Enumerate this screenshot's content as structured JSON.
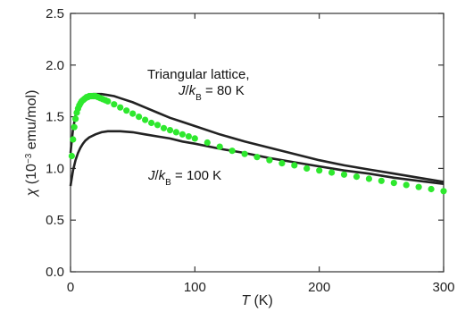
{
  "chart_data": {
    "type": "scatter",
    "title": "",
    "xlabel_symbol": "T",
    "xlabel_unit": " (K)",
    "ylabel_symbol": "χ",
    "ylabel_unit_pre": " (10",
    "ylabel_exponent": "−3",
    "ylabel_unit_post": " emu/mol)",
    "xlim": [
      0,
      300
    ],
    "ylim": [
      0,
      2.5
    ],
    "x_ticks": [
      0,
      100,
      200,
      300
    ],
    "x_tick_labels": [
      "0",
      "100",
      "200",
      "300"
    ],
    "y_ticks": [
      0,
      0.5,
      1.0,
      1.5,
      2.0,
      2.5
    ],
    "y_tick_labels": [
      "0.0",
      "0.5",
      "1.0",
      "1.5",
      "2.0",
      "2.5"
    ],
    "grid": false,
    "annotations": [
      {
        "line1": "Triangular lattice,",
        "symbol": "J",
        "slash": "/",
        "k": "k",
        "sub": "B",
        "rest": " = 80 K",
        "anchor_x": 123,
        "anchor_y": 1.93
      },
      {
        "symbol": "J",
        "slash": "/",
        "k": "k",
        "sub": "B",
        "rest": " = 100 K",
        "anchor_x": 63,
        "anchor_y": 0.97
      }
    ],
    "series": [
      {
        "kind": "markers",
        "color": "#2ee82e",
        "x": [
          1,
          2,
          3,
          4,
          5,
          6,
          7,
          8,
          9,
          10,
          11,
          12,
          13,
          14,
          15,
          16,
          17,
          18,
          19,
          20,
          22,
          24,
          26,
          28,
          30,
          35,
          40,
          45,
          50,
          55,
          60,
          65,
          70,
          75,
          80,
          85,
          90,
          95,
          100,
          110,
          120,
          130,
          140,
          150,
          160,
          170,
          180,
          190,
          200,
          210,
          220,
          230,
          240,
          250,
          260,
          270,
          280,
          290,
          300
        ],
        "y": [
          1.12,
          1.28,
          1.4,
          1.48,
          1.54,
          1.58,
          1.61,
          1.63,
          1.65,
          1.66,
          1.67,
          1.68,
          1.69,
          1.69,
          1.7,
          1.7,
          1.7,
          1.7,
          1.7,
          1.7,
          1.69,
          1.68,
          1.67,
          1.66,
          1.65,
          1.62,
          1.59,
          1.56,
          1.53,
          1.5,
          1.47,
          1.44,
          1.42,
          1.39,
          1.37,
          1.35,
          1.33,
          1.31,
          1.29,
          1.25,
          1.21,
          1.17,
          1.14,
          1.11,
          1.08,
          1.05,
          1.03,
          1.0,
          0.98,
          0.96,
          0.94,
          0.92,
          0.9,
          0.88,
          0.86,
          0.84,
          0.82,
          0.8,
          0.78
        ]
      },
      {
        "kind": "line",
        "color": "#222222",
        "x": [
          0,
          2,
          4,
          6,
          8,
          10,
          12,
          15,
          18,
          20,
          25,
          30,
          35,
          40,
          50,
          60,
          70,
          80,
          90,
          100,
          120,
          140,
          160,
          180,
          200,
          220,
          240,
          260,
          280,
          300
        ],
        "y": [
          1.15,
          1.38,
          1.51,
          1.59,
          1.64,
          1.67,
          1.69,
          1.71,
          1.72,
          1.72,
          1.72,
          1.71,
          1.7,
          1.68,
          1.64,
          1.59,
          1.54,
          1.49,
          1.45,
          1.41,
          1.33,
          1.26,
          1.2,
          1.14,
          1.08,
          1.03,
          0.99,
          0.95,
          0.91,
          0.87
        ]
      },
      {
        "kind": "line",
        "color": "#222222",
        "x": [
          0,
          2,
          4,
          6,
          8,
          10,
          12,
          15,
          20,
          25,
          30,
          35,
          40,
          50,
          60,
          70,
          80,
          90,
          100,
          120,
          140,
          160,
          180,
          200,
          220,
          240,
          260,
          280,
          300
        ],
        "y": [
          0.83,
          0.98,
          1.08,
          1.15,
          1.2,
          1.24,
          1.27,
          1.3,
          1.33,
          1.35,
          1.36,
          1.36,
          1.36,
          1.35,
          1.33,
          1.31,
          1.29,
          1.26,
          1.24,
          1.19,
          1.15,
          1.1,
          1.06,
          1.02,
          0.98,
          0.95,
          0.91,
          0.88,
          0.85
        ]
      }
    ]
  }
}
